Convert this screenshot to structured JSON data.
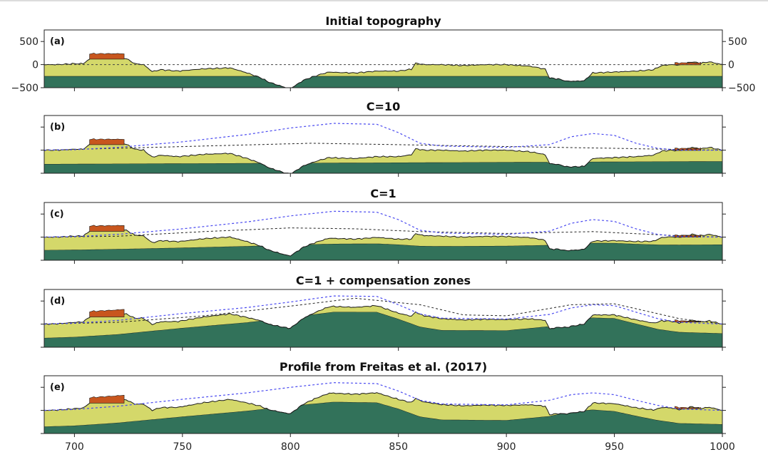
{
  "chart_data": [
    {
      "type": "area",
      "panel": "(a)",
      "title": "Initial topography",
      "ylim": [
        -500,
        750
      ],
      "yticks": [
        500,
        0,
        -500
      ],
      "xlim": [
        686,
        1000
      ],
      "xticks": [
        700,
        750,
        800,
        850,
        900,
        950,
        1000
      ],
      "topography_x": [
        686,
        692,
        700,
        704,
        708,
        712,
        716,
        720,
        724,
        728,
        732,
        736,
        740,
        748,
        760,
        772,
        780,
        786,
        790,
        794,
        798,
        800,
        802,
        806,
        810,
        814,
        818,
        822,
        830,
        840,
        850,
        856,
        858,
        862,
        870,
        880,
        890,
        900,
        906,
        910,
        914,
        918,
        920,
        924,
        928,
        932,
        936,
        940,
        950,
        960,
        968,
        972,
        976,
        980,
        986,
        990,
        994,
        1000
      ],
      "topography_y": [
        0,
        0,
        20,
        20,
        150,
        140,
        150,
        150,
        130,
        20,
        0,
        -150,
        -110,
        -140,
        -90,
        -70,
        -180,
        -280,
        -380,
        -440,
        -500,
        -520,
        -460,
        -340,
        -270,
        -210,
        -160,
        -170,
        -180,
        -140,
        -140,
        -100,
        30,
        0,
        0,
        -20,
        0,
        0,
        -20,
        -30,
        -60,
        -100,
        -290,
        -310,
        -360,
        -360,
        -350,
        -180,
        -160,
        -140,
        -110,
        -20,
        0,
        -10,
        60,
        30,
        60,
        0
      ],
      "sediment_base_y": -250,
      "sediment_base_end_y": -250,
      "mantle_top_y": -250,
      "reference_level_y": 0
    },
    {
      "type": "area",
      "panel": "(b)",
      "title": "C=10",
      "ylim": [
        -500,
        750
      ],
      "xlim": [
        686,
        1000
      ],
      "xticks": [
        700,
        750,
        800,
        850,
        900,
        950,
        1000
      ],
      "shift": 0,
      "sediment_base_y": -300,
      "sediment_base_end_y": -240,
      "depocenter_x": 780,
      "dashed_black_x": [
        686,
        810,
        1000
      ],
      "dashed_black_y": [
        0,
        150,
        0
      ],
      "dashed_blue_x": [
        686,
        700,
        720,
        750,
        780,
        800,
        820,
        840,
        850,
        860,
        870,
        900,
        920,
        930,
        940,
        950,
        960,
        970,
        980,
        1000
      ],
      "dashed_blue_y": [
        0,
        10,
        60,
        180,
        340,
        480,
        580,
        560,
        380,
        150,
        90,
        60,
        120,
        290,
        360,
        320,
        150,
        40,
        0,
        0
      ]
    },
    {
      "type": "area",
      "panel": "(c)",
      "title": "C=1",
      "ylim": [
        -500,
        750
      ],
      "xlim": [
        686,
        1000
      ],
      "xticks": [
        700,
        750,
        800,
        850,
        900,
        950,
        1000
      ],
      "shift": 0,
      "sediment_base_y": -280,
      "sediment_base_end_y": -160,
      "depocenter_x": 760,
      "dashed_black_x": [
        686,
        720,
        760,
        800,
        830,
        860,
        900,
        940,
        980,
        1000
      ],
      "dashed_black_y": [
        0,
        20,
        120,
        200,
        180,
        120,
        80,
        120,
        30,
        0
      ],
      "dashed_blue_x": [
        686,
        700,
        720,
        750,
        780,
        800,
        820,
        840,
        850,
        860,
        870,
        900,
        920,
        930,
        940,
        950,
        960,
        970,
        980,
        1000
      ],
      "dashed_blue_y": [
        0,
        10,
        60,
        180,
        330,
        460,
        560,
        540,
        380,
        150,
        90,
        60,
        130,
        300,
        380,
        340,
        180,
        60,
        10,
        0
      ]
    },
    {
      "type": "area",
      "panel": "(d)",
      "title": "C=1 + compensation zones",
      "ylim": [
        -500,
        750
      ],
      "xlim": [
        686,
        1000
      ],
      "xticks": [
        700,
        750,
        800,
        850,
        900,
        950,
        1000
      ],
      "shift": 0,
      "sediment_base_y": -300,
      "sediment_base_end_y": -200,
      "depocenter_x": 760,
      "dashed_black_x": [
        686,
        720,
        760,
        800,
        830,
        860,
        880,
        900,
        930,
        950,
        980,
        1000
      ],
      "dashed_black_y": [
        0,
        40,
        180,
        390,
        560,
        420,
        200,
        180,
        420,
        440,
        120,
        0
      ],
      "dashed_blue_x": [
        686,
        700,
        720,
        750,
        780,
        800,
        820,
        840,
        850,
        860,
        870,
        900,
        920,
        930,
        940,
        950,
        960,
        970,
        980,
        1000
      ],
      "dashed_blue_y": [
        0,
        20,
        80,
        230,
        360,
        480,
        610,
        600,
        420,
        220,
        130,
        110,
        210,
        350,
        420,
        400,
        260,
        120,
        40,
        0
      ]
    },
    {
      "type": "area",
      "panel": "(e)",
      "title": "Profile from Freitas et al. (2017)",
      "ylim": [
        -500,
        750
      ],
      "xlim": [
        686,
        1000
      ],
      "xticks": [
        700,
        750,
        800,
        850,
        900,
        950,
        1000
      ],
      "shift": 0,
      "sediment_base_y": -350,
      "sediment_base_end_y": -300,
      "depocenter_x": 750,
      "dashed_blue_x": [
        686,
        700,
        720,
        750,
        780,
        800,
        820,
        840,
        850,
        860,
        870,
        900,
        920,
        930,
        940,
        950,
        960,
        970,
        980,
        1000
      ],
      "dashed_blue_y": [
        0,
        20,
        90,
        240,
        380,
        500,
        600,
        580,
        420,
        220,
        140,
        120,
        220,
        340,
        380,
        340,
        220,
        110,
        30,
        0
      ]
    }
  ],
  "colors": {
    "mantle": "#32725a",
    "sediment": "#d4d86a",
    "volcanic": "#c8561e",
    "blue_dash": "#4a4af0",
    "black_dash": "#222222",
    "outline": "#1a1a1a"
  }
}
